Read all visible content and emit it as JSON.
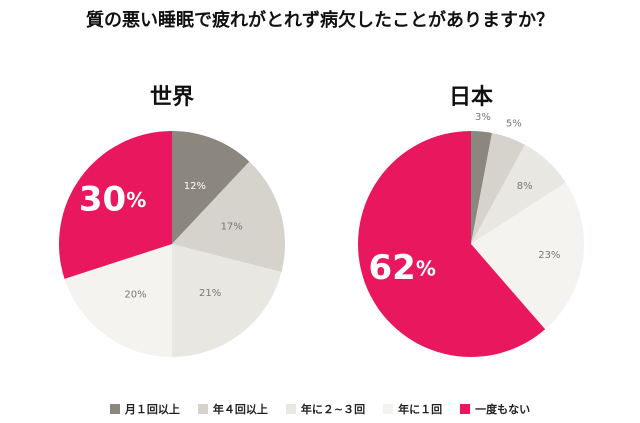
{
  "chart_data": {
    "type": "pie",
    "title": "質の悪い睡眠で疲れがとれず病欠したことがありますか？",
    "categories": [
      "月１回以上",
      "年４回以上",
      "年に２~３回",
      "年に１回",
      "一度もない"
    ],
    "colors": [
      "#8b867e",
      "#d5d3cc",
      "#e8e7e2",
      "#f4f3ef",
      "#e8175e"
    ],
    "unit": "%",
    "charts": [
      {
        "title": "世界",
        "values": [
          12,
          17,
          21,
          20,
          30
        ]
      },
      {
        "title": "日本",
        "values": [
          3,
          5,
          8,
          23,
          62
        ]
      }
    ],
    "legend_position": "bottom"
  }
}
